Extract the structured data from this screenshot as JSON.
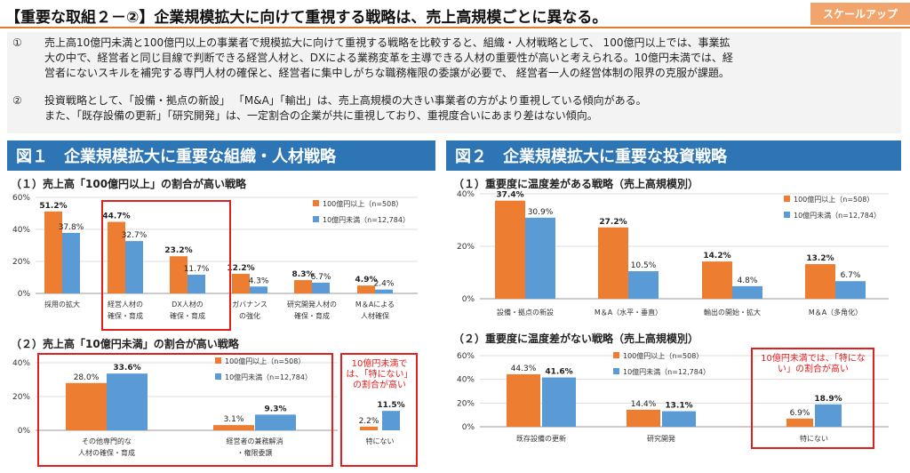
{
  "header": {
    "title": "【重要な取組２－②】企業規模拡大に向けて重視する戦略は、売上高規模ごとに異なる。",
    "tag": "スケールアップ"
  },
  "summary": {
    "item1": {
      "num": "①",
      "lines": [
        "売上高10億円未満と100億円以上の事業者で規模拡大に向けて重視する戦略を比較すると、組織・人材戦略として、 100億円以上では、事業拡",
        "大の中で、経営者と同じ目線で判断できる経営人材と、DXによる業務変革を主導できる人材の重要性が高いと考えられる。10億円未満では、経",
        "営者にないスキルを補完する専門人材の確保と、経営者に集中しがちな職務権限の委譲が必要で、 経営者一人の経営体制の限界の克服が課題。"
      ]
    },
    "item2": {
      "num": "②",
      "lines": [
        "投資戦略として、「設備・拠点の新設」 「M&A」「輸出」は、売上高規模の大きい事業者の方がより重視している傾向がある。",
        "また、「既存設備の更新」「研究開発」は、一定割合の企業が共に重視しており、重視度合いにあまり差はない傾向。"
      ]
    }
  },
  "figures": {
    "fig1_title": "図１　企業規模拡大に重要な組織・人材戦略",
    "fig2_title": "図２　企業規模拡大に重要な投資戦略",
    "fig1_sub1": "（１）売上高「100億円以上」の割合が高い戦略",
    "fig1_sub2": "（２）売上高「10億円未満」の割合が高い戦略",
    "fig2_sub1": "（１）重要度に温度差がある戦略（売上高規模別）",
    "fig2_sub2": "（２）重要度に温度差がない戦略（売上高規模別）",
    "note1": "10億円未満では、「特にない」の割合が高い",
    "note2": "10億円未満では、「特にない」の割合が高い"
  },
  "colors": {
    "orange": "#ed7d31",
    "blue": "#5b9bd5",
    "highlight": "#e02020"
  },
  "chart_data": [
    {
      "id": "c1",
      "type": "bar",
      "title": "（１）売上高「100億円以上」の割合が高い戦略",
      "categories": [
        [
          "採用の拡大"
        ],
        [
          "経営人材の",
          "確保・育成"
        ],
        [
          "DX人材の",
          "確保・育成"
        ],
        [
          "ガバナンス",
          "の強化"
        ],
        [
          "研究開発人材の",
          "確保・育成"
        ],
        [
          "M＆Aによる",
          "人材確保"
        ]
      ],
      "series": [
        {
          "name": "100億円以上（n=508）",
          "values": [
            51.2,
            44.7,
            23.2,
            12.2,
            8.3,
            4.9
          ]
        },
        {
          "name": "10億円未満（n=12,784）",
          "values": [
            37.8,
            32.7,
            11.7,
            4.3,
            6.7,
            2.4
          ]
        }
      ],
      "yticks": [
        "0%",
        "20%",
        "40%",
        "60%"
      ],
      "ylim": [
        0,
        60
      ]
    },
    {
      "id": "c2",
      "type": "bar",
      "title": "（２）売上高「10億円未満」の割合が高い戦略",
      "categories": [
        [
          "その他専門的な",
          "人材の確保・育成"
        ],
        [
          "経営者の兼務解消",
          "・権限委譲"
        ],
        [
          "特にない"
        ]
      ],
      "series": [
        {
          "name": "100億円以上（n=508）",
          "values": [
            28.0,
            3.1,
            2.2
          ]
        },
        {
          "name": "10億円未満（n=12,784）",
          "values": [
            33.6,
            9.3,
            11.5
          ]
        }
      ],
      "yticks": [
        "0%",
        "20%",
        "40%"
      ],
      "ylim": [
        0,
        40
      ]
    },
    {
      "id": "c3",
      "type": "bar",
      "title": "（１）重要度に温度差がある戦略（売上高規模別）",
      "categories": [
        [
          "設備・拠点の新設"
        ],
        [
          "M＆A（水平・垂直）"
        ],
        [
          "輸出の開始・拡大"
        ],
        [
          "M＆A（多角化）"
        ]
      ],
      "series": [
        {
          "name": "100億円以上（n=508）",
          "values": [
            37.4,
            27.2,
            14.2,
            13.2
          ]
        },
        {
          "name": "10億円未満（n=12,784）",
          "values": [
            30.9,
            10.5,
            4.8,
            6.7
          ]
        }
      ],
      "yticks": [
        "0%",
        "20%",
        "40%"
      ],
      "ylim": [
        0,
        40
      ]
    },
    {
      "id": "c4",
      "type": "bar",
      "title": "（２）重要度に温度差がない戦略（売上高規模別）",
      "categories": [
        [
          "既存設備の更新"
        ],
        [
          "研究開発"
        ],
        [
          "特にない"
        ]
      ],
      "series": [
        {
          "name": "100億円以上（n=508）",
          "values": [
            44.3,
            14.4,
            6.9
          ]
        },
        {
          "name": "10億円未満（n=12,784）",
          "values": [
            41.6,
            13.1,
            18.9
          ]
        }
      ],
      "yticks": [
        "0%",
        "20%",
        "40%",
        "60%"
      ],
      "ylim": [
        0,
        60
      ]
    }
  ]
}
